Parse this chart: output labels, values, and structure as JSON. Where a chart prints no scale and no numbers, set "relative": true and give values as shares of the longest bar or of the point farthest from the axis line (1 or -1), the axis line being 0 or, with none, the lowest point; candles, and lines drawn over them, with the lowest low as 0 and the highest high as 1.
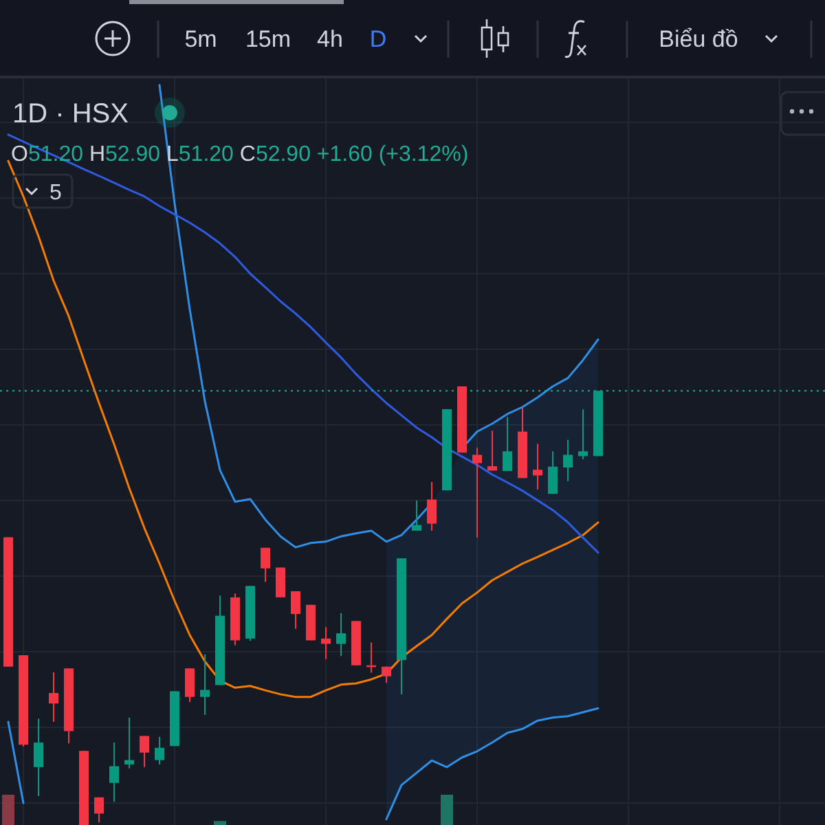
{
  "chart_data": {
    "type": "candlestick",
    "title": "1D · HSX",
    "annotations": [
      "5m",
      "15m",
      "4h",
      "D",
      "Biểu đồ",
      "O51.20 H52.90 L51.20 C52.90 +1.60 (+3.12%)",
      "5"
    ],
    "relative": true,
    "grid": true,
    "categories": [
      null,
      null,
      null,
      null,
      null,
      null,
      null,
      null,
      null,
      null,
      null,
      null,
      null,
      null,
      null,
      null,
      null,
      null,
      null,
      null,
      null,
      null,
      null,
      null,
      null,
      null,
      null,
      null,
      null,
      null,
      null,
      null,
      null,
      null,
      null,
      null,
      null,
      null,
      null,
      null
    ],
    "ohlc": [
      [
        0.656,
        0.656,
        0.361,
        0.361
      ],
      [
        0.387,
        0.387,
        0.179,
        0.183
      ],
      [
        0.132,
        0.242,
        0.066,
        0.188
      ],
      [
        0.301,
        0.348,
        0.235,
        0.277
      ],
      [
        0.357,
        0.357,
        0.186,
        0.214
      ],
      [
        0.169,
        0.169,
        0,
        0
      ],
      [
        0.063,
        0.063,
        0.006,
        0.026
      ],
      [
        0.096,
        0.188,
        0.053,
        0.134
      ],
      [
        0.138,
        0.245,
        0.129,
        0.148
      ],
      [
        0.203,
        0.203,
        0.132,
        0.165
      ],
      [
        0.148,
        0.201,
        0.138,
        0.176
      ],
      [
        0.18,
        0.305,
        0.18,
        0.305
      ],
      [
        0.357,
        0.357,
        0.28,
        0.292
      ],
      [
        0.292,
        0.389,
        0.251,
        0.308
      ],
      [
        0.319,
        0.523,
        0.319,
        0.477
      ],
      [
        0.519,
        0.528,
        0.41,
        0.421
      ],
      [
        0.425,
        0.545,
        0.42,
        0.545
      ],
      [
        0.632,
        0.632,
        0.554,
        0.585
      ],
      [
        0.587,
        0.587,
        0.519,
        0.519
      ],
      [
        0.533,
        0.533,
        0.447,
        0.481
      ],
      [
        0.502,
        0.502,
        0.421,
        0.421
      ],
      [
        0.425,
        0.451,
        0.378,
        0.413
      ],
      [
        0.413,
        0.483,
        0.385,
        0.437
      ],
      [
        0.465,
        0.465,
        0.364,
        0.364
      ],
      [
        0.364,
        0.416,
        0.347,
        0.36
      ],
      [
        0.361,
        0.361,
        0.324,
        0.339
      ],
      [
        0.376,
        0.608,
        0.298,
        0.608
      ],
      [
        0.671,
        0.74,
        0.671,
        0.684
      ],
      [
        0.742,
        0.782,
        0.671,
        0.687
      ],
      [
        0.763,
        0.948,
        0.763,
        0.948
      ],
      [
        1,
        1,
        0.849,
        0.849
      ],
      [
        0.844,
        0.86,
        0.655,
        0.825
      ],
      [
        0.818,
        0.899,
        0.808,
        0.808
      ],
      [
        0.807,
        0.93,
        0.807,
        0.852
      ],
      [
        0.897,
        0.953,
        0.791,
        0.791
      ],
      [
        0.81,
        0.869,
        0.765,
        0.797
      ],
      [
        0.755,
        0.852,
        0.755,
        0.817
      ],
      [
        0.815,
        0.878,
        0.784,
        0.844
      ],
      [
        0.841,
        0.948,
        0.834,
        0.852
      ],
      [
        0.841,
        0.99,
        0.841,
        0.99
      ]
    ],
    "series": [
      {
        "type": "line",
        "color": "#f57c00",
        "values": [
          1.514,
          1.433,
          1.342,
          1.241,
          1.16,
          1.06,
          0.962,
          0.868,
          0.768,
          0.677,
          0.596,
          0.511,
          0.433,
          0.373,
          0.329,
          0.313,
          0.317,
          0.307,
          0.298,
          0.292,
          0.292,
          0.307,
          0.32,
          0.323,
          0.332,
          0.345,
          0.382,
          0.408,
          0.433,
          0.47,
          0.505,
          0.53,
          0.558,
          0.577,
          0.596,
          0.611,
          0.627,
          0.643,
          0.661,
          0.69
        ],
        "upper": [
          null,
          null,
          null,
          null,
          null,
          null,
          null,
          null,
          null,
          null,
          null,
          null,
          null,
          null,
          null,
          null,
          null,
          null,
          null,
          null,
          null,
          null,
          null,
          null,
          null,
          0.646,
          0.661,
          0.696,
          0.734,
          0.787,
          0.859,
          0.897,
          0.915,
          0.937,
          0.953,
          0.975,
          1.0,
          1.019,
          1.06,
          1.107
        ],
        "lower": [
          null,
          null,
          null,
          null,
          null,
          null,
          null,
          null,
          null,
          null,
          null,
          null,
          null,
          null,
          null,
          null,
          null,
          null,
          null,
          null,
          null,
          null,
          null,
          null,
          null,
          0.013,
          0.091,
          0.119,
          0.147,
          0.132,
          0.154,
          0.168,
          0.188,
          0.21,
          0.219,
          0.238,
          0.245,
          0.248,
          0.257,
          0.266
        ]
      },
      {
        "type": "line",
        "color": "#2f8fe6",
        "values": [
          null,
          null,
          null,
          null,
          null,
          null,
          null,
          null,
          null,
          null,
          1.687,
          1.417,
          1.176,
          0.966,
          0.809,
          0.737,
          0.743,
          0.696,
          0.658,
          0.633,
          0.643,
          0.646,
          0.658,
          0.665,
          0.671,
          0.646,
          0.661,
          0.696,
          0.734,
          null,
          0.859,
          0.897,
          0.915,
          0.937,
          0.953,
          0.975,
          1.0,
          1.019,
          1.06,
          1.107
        ]
      },
      {
        "type": "line",
        "color": "#2f8fe6",
        "values": [
          0.235,
          0.05,
          null,
          null,
          null,
          null,
          null,
          null,
          null,
          null,
          null,
          null,
          null,
          null,
          null,
          null,
          null,
          null,
          null,
          null,
          null,
          null,
          null,
          null,
          null,
          0.013,
          0.091,
          0.119,
          0.147,
          0.132,
          0.154,
          0.168,
          0.188,
          0.21,
          0.219,
          0.238,
          0.245,
          0.248,
          0.257,
          0.266
        ]
      },
      {
        "type": "line",
        "color": "#2e5be0",
        "values": [
          1.574,
          1.558,
          1.542,
          1.527,
          1.511,
          1.495,
          1.48,
          1.464,
          1.448,
          1.433,
          1.411,
          1.392,
          1.373,
          1.351,
          1.326,
          1.295,
          1.257,
          1.226,
          1.194,
          1.166,
          1.135,
          1.1,
          1.066,
          1.028,
          0.994,
          0.962,
          0.934,
          0.906,
          0.884,
          0.859,
          0.84,
          0.821,
          0.799,
          0.781,
          0.762,
          0.74,
          0.718,
          0.69,
          0.655,
          0.621
        ]
      },
      {
        "type": "bar",
        "colors": [
          "#8a3a46",
          null,
          null,
          null,
          null,
          null,
          null,
          null,
          null,
          null,
          null,
          null,
          null,
          null,
          "#1f7563",
          null,
          null,
          null,
          null,
          null,
          null,
          null,
          null,
          null,
          null,
          null,
          null,
          null,
          null,
          "#1f7563",
          null,
          null,
          null,
          null,
          null,
          null,
          null,
          null,
          null,
          null
        ],
        "values": [
          0.069,
          null,
          null,
          null,
          null,
          null,
          null,
          null,
          null,
          null,
          null,
          null,
          null,
          null,
          0.009,
          null,
          null,
          null,
          null,
          null,
          null,
          null,
          null,
          null,
          null,
          null,
          null,
          null,
          null,
          0.069,
          null,
          null,
          null,
          null,
          null,
          null,
          null,
          null,
          null,
          null
        ]
      }
    ],
    "ref_lines": [
      {
        "axis": "y",
        "value": 0.99,
        "color": "#22ab94",
        "line_style": "dotted"
      }
    ]
  }
}
